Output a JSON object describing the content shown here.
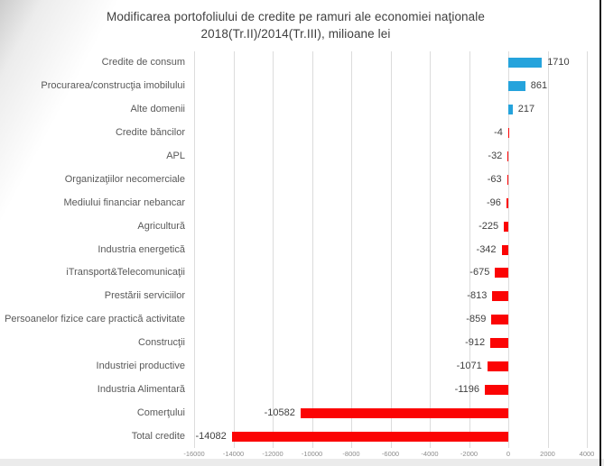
{
  "title": {
    "line1": "Modificarea portofoliului de credite pe ramuri ale economiei naţionale",
    "line2": "2018(Tr.II)/2014(Tr.III), milioane lei"
  },
  "window": {
    "bottom_edge_color": "#ebebeb",
    "screen_edge_color": "#1c1c1c"
  },
  "chart_data": {
    "type": "bar",
    "orientation": "horizontal",
    "title": "Modificarea portofoliului de credite pe ramuri ale economiei naţionale 2018(Tr.II)/2014(Tr.III), milioane lei",
    "categories": [
      "Credite de consum",
      "Procurarea/construcţia imobilului",
      "Alte domenii",
      "Credite băncilor",
      "APL",
      "Organizaţiilor necomerciale",
      "Mediului financiar nebancar",
      "Agricultură",
      "Industria energetică",
      "iTransport&Telecomunicaţii",
      "Prestării serviciilor",
      "Persoanelor fizice care practică activitate",
      "Construcţii",
      "Industriei productive",
      "Industria Alimentară",
      "Comerţului",
      "Total credite"
    ],
    "values": [
      1710,
      861,
      217,
      -4,
      -32,
      -63,
      -96,
      -225,
      -342,
      -675,
      -813,
      -859,
      -912,
      -1071,
      -1196,
      -10582,
      -14082
    ],
    "xlabel": "",
    "ylabel": "",
    "xlim": [
      -16000,
      4000
    ],
    "xticks": [
      -16000,
      -14000,
      -12000,
      -10000,
      -8000,
      -6000,
      -4000,
      -2000,
      0,
      2000,
      4000
    ],
    "grid": true,
    "legend": "none",
    "data_labels": true,
    "positive_color": "#25a3dc",
    "negative_color": "#fb0404",
    "category_label_color": "#595959",
    "value_label_color": "#3f3f3f",
    "tick_label_color": "#8c8c8c",
    "gridline_color": "#dcdcdc"
  }
}
